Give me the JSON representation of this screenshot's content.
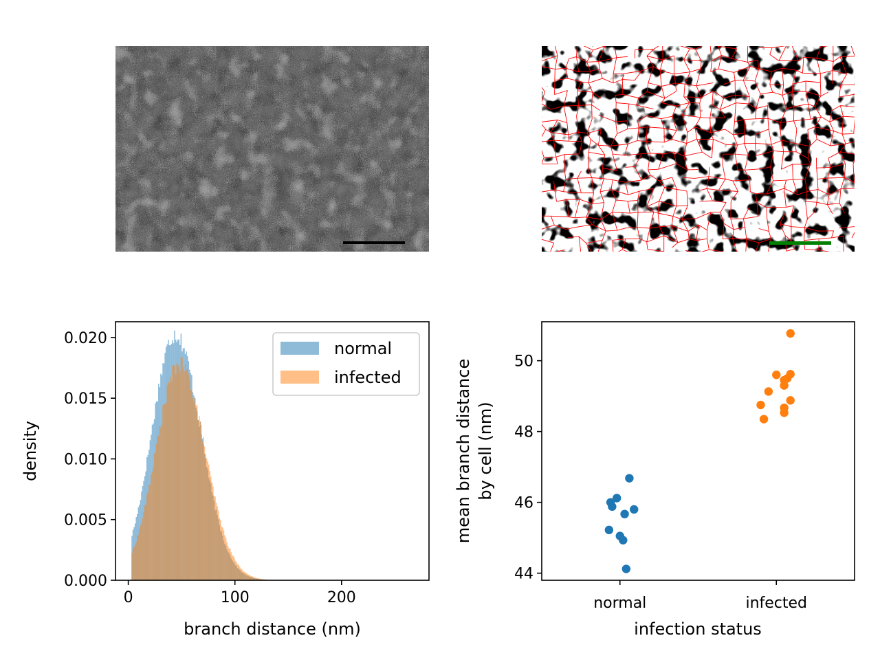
{
  "colors": {
    "normal": "#1f77b4",
    "infected": "#ff7f0e",
    "scale_bar_micrograph": "#000000",
    "scale_bar_skeleton": "#008000",
    "skeleton_lines": "#ff0000"
  },
  "panels": {
    "micrograph": {
      "content": "grayscale electron micrograph with black scale bar"
    },
    "skeleton": {
      "content": "binarized network with red skeleton branches and green scale bar"
    }
  },
  "chart_data": [
    {
      "type": "histogram",
      "xlabel": "branch distance (nm)",
      "ylabel": "density",
      "xlim": [
        -12,
        282
      ],
      "ylim": [
        0,
        0.0213
      ],
      "xticks": [
        0,
        100,
        200
      ],
      "xtick_labels": [
        "0",
        "100",
        "200"
      ],
      "yticks": [
        0,
        0.005,
        0.01,
        0.015,
        0.02
      ],
      "ytick_labels": [
        "0.000",
        "0.005",
        "0.010",
        "0.015",
        "0.020"
      ],
      "legend_position": "upper right",
      "alpha": 0.5,
      "series": [
        {
          "name": "normal",
          "color": "#1f77b4",
          "x_start": 3,
          "x_end": 150,
          "peak_x": 44,
          "peak_density": 0.0203
        },
        {
          "name": "infected",
          "color": "#ff7f0e",
          "x_start": 3,
          "x_end": 160,
          "peak_x": 48,
          "peak_density": 0.0178
        }
      ]
    },
    {
      "type": "strip",
      "xlabel": "infection status",
      "ylabel_lines": [
        "mean branch distance",
        "by cell (nm)"
      ],
      "categories": [
        "normal",
        "infected"
      ],
      "xlim": [
        -0.5,
        1.5
      ],
      "ylim": [
        43.8,
        51.1
      ],
      "yticks": [
        44,
        46,
        48,
        50
      ],
      "ytick_labels": [
        "44",
        "46",
        "48",
        "50"
      ],
      "series": [
        {
          "name": "normal",
          "color": "#1f77b4",
          "points": [
            {
              "x": 0.06,
              "y": 46.68
            },
            {
              "x": -0.06,
              "y": 46.0
            },
            {
              "x": -0.02,
              "y": 46.12
            },
            {
              "x": -0.05,
              "y": 45.88
            },
            {
              "x": 0.09,
              "y": 45.8
            },
            {
              "x": 0.03,
              "y": 45.67
            },
            {
              "x": -0.07,
              "y": 45.22
            },
            {
              "x": 0.0,
              "y": 45.05
            },
            {
              "x": 0.02,
              "y": 44.93
            },
            {
              "x": 0.04,
              "y": 44.12
            }
          ]
        },
        {
          "name": "infected",
          "color": "#ff7f0e",
          "points": [
            {
              "x": 0.09,
              "y": 50.77
            },
            {
              "x": 0.0,
              "y": 49.6
            },
            {
              "x": 0.09,
              "y": 49.62
            },
            {
              "x": 0.07,
              "y": 49.5
            },
            {
              "x": 0.05,
              "y": 49.45
            },
            {
              "x": 0.05,
              "y": 49.3
            },
            {
              "x": -0.05,
              "y": 49.13
            },
            {
              "x": 0.09,
              "y": 48.88
            },
            {
              "x": -0.1,
              "y": 48.75
            },
            {
              "x": 0.05,
              "y": 48.67
            },
            {
              "x": 0.05,
              "y": 48.53
            },
            {
              "x": -0.08,
              "y": 48.35
            }
          ]
        }
      ]
    }
  ]
}
